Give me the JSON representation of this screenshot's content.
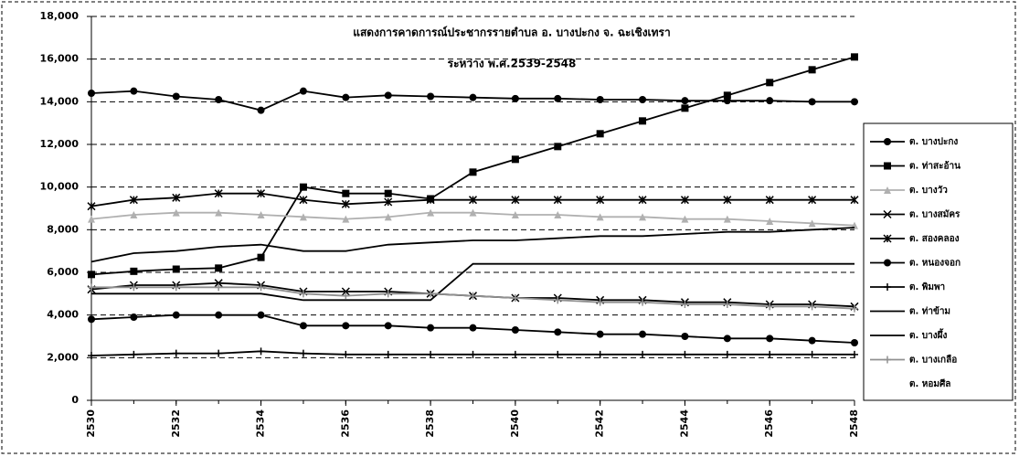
{
  "chart_data": {
    "type": "line",
    "title": "แสดงการคาดการณ์ประชากรรายตำบล อ. บางปะกง จ. ฉะเชิงเทรา",
    "subtitle": "ระหว่าง พ.ศ.2539-2548",
    "x": [
      2530,
      2531,
      2532,
      2533,
      2534,
      2535,
      2536,
      2537,
      2538,
      2539,
      2540,
      2541,
      2542,
      2543,
      2544,
      2545,
      2546,
      2547,
      2548
    ],
    "xlim": [
      2530,
      2548
    ],
    "xticks": [
      2530,
      2532,
      2534,
      2536,
      2538,
      2540,
      2542,
      2544,
      2546,
      2548
    ],
    "ylim": [
      0,
      18000
    ],
    "yticks": [
      0,
      {
        "value": 2000,
        "label": "2,000"
      },
      {
        "value": 4000,
        "label": "4,000"
      },
      {
        "value": 6000,
        "label": "6,000"
      },
      {
        "value": 8000,
        "label": "8,000"
      },
      {
        "value": 10000,
        "label": "10,000"
      },
      {
        "value": 12000,
        "label": "12,000"
      },
      {
        "value": 14000,
        "label": "14,000"
      },
      {
        "value": 16000,
        "label": "16,000"
      },
      {
        "value": 18000,
        "label": "18,000"
      }
    ],
    "grid": true,
    "legend": "right",
    "series": [
      {
        "name": "ต. บางปะกง",
        "color": "#000000",
        "marker": "circle",
        "values": [
          14400,
          14500,
          14250,
          14100,
          13600,
          14500,
          14200,
          14300,
          14250,
          14200,
          14150,
          14150,
          14100,
          14100,
          14050,
          14050,
          14050,
          14000,
          14000
        ]
      },
      {
        "name": "ต. ท่าสะอ้าน",
        "color": "#000000",
        "marker": "square",
        "values": [
          5900,
          6050,
          6150,
          6200,
          6700,
          10000,
          9700,
          9700,
          9450,
          10700,
          11300,
          11900,
          12500,
          13100,
          13700,
          14300,
          14900,
          15500,
          16100
        ]
      },
      {
        "name": "ต. บางวัว",
        "color": "#b0b0b0",
        "marker": "triangle",
        "values": [
          8500,
          8700,
          8800,
          8800,
          8700,
          8600,
          8500,
          8600,
          8800,
          8800,
          8700,
          8700,
          8600,
          8600,
          8500,
          8500,
          8400,
          8300,
          8200
        ]
      },
      {
        "name": "ต. บางสมัคร",
        "color": "#000000",
        "marker": "x",
        "values": [
          5200,
          5400,
          5400,
          5500,
          5400,
          5100,
          5100,
          5100,
          5000,
          4900,
          4800,
          4800,
          4700,
          4700,
          4600,
          4600,
          4500,
          4500,
          4400
        ]
      },
      {
        "name": "ต. สองคลอง",
        "color": "#000000",
        "marker": "star",
        "values": [
          9100,
          9400,
          9500,
          9700,
          9700,
          9400,
          9200,
          9300,
          9400,
          9400,
          9400,
          9400,
          9400,
          9400,
          9400,
          9400,
          9400,
          9400,
          9400
        ]
      },
      {
        "name": "ต. หนองจอก",
        "color": "#000000",
        "marker": "circle",
        "values": [
          3800,
          3900,
          4000,
          4000,
          4000,
          3500,
          3500,
          3500,
          3400,
          3400,
          3300,
          3200,
          3100,
          3100,
          3000,
          2900,
          2900,
          2800,
          2700
        ]
      },
      {
        "name": "ต. พิมพา",
        "color": "#000000",
        "marker": "plus",
        "values": [
          2100,
          2150,
          2200,
          2200,
          2300,
          2200,
          2150,
          2150,
          2150,
          2150,
          2150,
          2150,
          2150,
          2150,
          2150,
          2150,
          2150,
          2150,
          2150
        ]
      },
      {
        "name": "ต. ท่าข้าม",
        "color": "#000000",
        "marker": "none",
        "values": [
          5000,
          5000,
          5000,
          5000,
          5000,
          4700,
          4700,
          4700,
          4700,
          6400,
          6400,
          6400,
          6400,
          6400,
          6400,
          6400,
          6400,
          6400,
          6400
        ]
      },
      {
        "name": "ต. บางผึ้ง",
        "color": "#000000",
        "marker": "none",
        "values": [
          6500,
          6900,
          7000,
          7200,
          7300,
          7000,
          7000,
          7300,
          7400,
          7500,
          7500,
          7600,
          7700,
          7700,
          7800,
          7900,
          7900,
          8000,
          8100
        ]
      },
      {
        "name": "ต. บางเกลือ",
        "color": "#909090",
        "marker": "plus",
        "values": [
          5300,
          5300,
          5300,
          5300,
          5300,
          5000,
          4900,
          5000,
          5000,
          4900,
          4800,
          4700,
          4600,
          4600,
          4500,
          4500,
          4400,
          4400,
          4300
        ]
      },
      {
        "name": "ต. หอมศีล",
        "color": "#000000",
        "marker": "none",
        "values": [
          null,
          null,
          null,
          null,
          null,
          null,
          null,
          null,
          null,
          null,
          null,
          null,
          null,
          null,
          null,
          null,
          null,
          null,
          null
        ]
      }
    ]
  }
}
